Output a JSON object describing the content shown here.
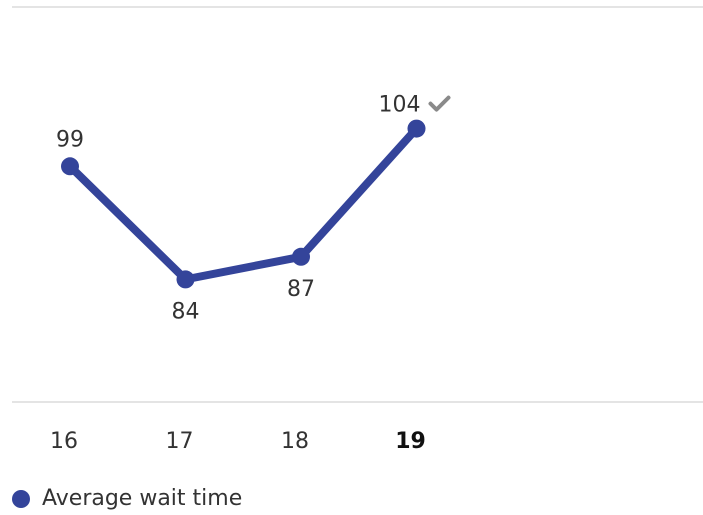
{
  "chart_data": {
    "type": "line",
    "categories": [
      "16",
      "17",
      "18",
      "19"
    ],
    "highlighted_category": "19",
    "series": [
      {
        "name": "Average wait time",
        "values": [
          99,
          84,
          87,
          104
        ],
        "color": "#34449a"
      }
    ],
    "data_labels": [
      "99",
      "84",
      "87",
      "104"
    ],
    "status_icon": "checkmark-icon",
    "status_icon_color": "#8a8a8a",
    "grid": false,
    "legend_position": "bottom-left",
    "ylim": [
      68,
      120
    ]
  }
}
